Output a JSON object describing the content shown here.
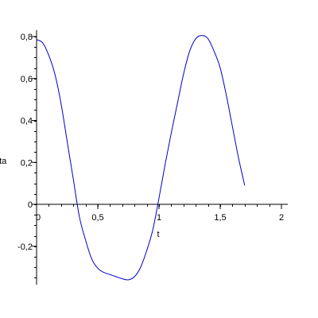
{
  "chart_data": {
    "type": "line",
    "title": "",
    "xlabel": "t",
    "ylabel": "eta",
    "xlim": [
      0,
      2
    ],
    "ylim": [
      -0.38,
      0.8
    ],
    "grid": false,
    "x_ticks": [
      {
        "value": 0,
        "label": "0"
      },
      {
        "value": 0.5,
        "label": "0,5"
      },
      {
        "value": 1,
        "label": "1"
      },
      {
        "value": 1.5,
        "label": "1,5"
      },
      {
        "value": 2,
        "label": "2"
      }
    ],
    "y_ticks": [
      {
        "value": -0.2,
        "label": "-0,2"
      },
      {
        "value": 0,
        "label": "0"
      },
      {
        "value": 0.2,
        "label": "0,2"
      },
      {
        "value": 0.4,
        "label": "0,4"
      },
      {
        "value": 0.6,
        "label": "0,6"
      },
      {
        "value": 0.8,
        "label": "0,8"
      }
    ],
    "series": [
      {
        "color": "#0000cc",
        "points": [
          [
            0.0,
            0.785
          ],
          [
            0.05,
            0.77
          ],
          [
            0.1,
            0.71
          ],
          [
            0.15,
            0.62
          ],
          [
            0.2,
            0.48
          ],
          [
            0.25,
            0.3
          ],
          [
            0.3,
            0.12
          ],
          [
            0.35,
            -0.06
          ],
          [
            0.4,
            -0.17
          ],
          [
            0.45,
            -0.26
          ],
          [
            0.5,
            -0.305
          ],
          [
            0.55,
            -0.325
          ],
          [
            0.6,
            -0.335
          ],
          [
            0.65,
            -0.345
          ],
          [
            0.7,
            -0.355
          ],
          [
            0.75,
            -0.36
          ],
          [
            0.8,
            -0.345
          ],
          [
            0.85,
            -0.3
          ],
          [
            0.9,
            -0.22
          ],
          [
            0.95,
            -0.12
          ],
          [
            1.0,
            0.03
          ],
          [
            1.05,
            0.19
          ],
          [
            1.1,
            0.34
          ],
          [
            1.15,
            0.48
          ],
          [
            1.2,
            0.62
          ],
          [
            1.25,
            0.73
          ],
          [
            1.3,
            0.79
          ],
          [
            1.35,
            0.805
          ],
          [
            1.4,
            0.79
          ],
          [
            1.45,
            0.73
          ],
          [
            1.5,
            0.65
          ],
          [
            1.55,
            0.52
          ],
          [
            1.6,
            0.37
          ],
          [
            1.65,
            0.22
          ],
          [
            1.7,
            0.09
          ]
        ]
      }
    ]
  }
}
